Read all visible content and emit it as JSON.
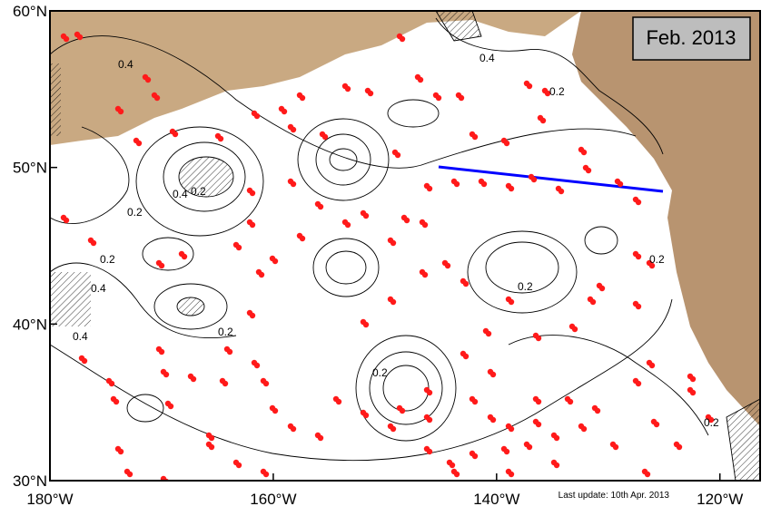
{
  "map": {
    "title": "Feb. 2013",
    "note": "Last update: 10th Apr. 2013",
    "xlim": [
      -180,
      -116.4
    ],
    "ylim": [
      30,
      60
    ],
    "xticks": [
      {
        "value": -180,
        "label": "180°W"
      },
      {
        "value": -160,
        "label": "160°W"
      },
      {
        "value": -140,
        "label": "140°W"
      },
      {
        "value": -120,
        "label": "120°W"
      }
    ],
    "yticks": [
      {
        "value": 30,
        "label": "30°N"
      },
      {
        "value": 40,
        "label": "40°N"
      },
      {
        "value": 50,
        "label": "50°N"
      },
      {
        "value": 60,
        "label": "60°N"
      }
    ],
    "contour_labels": [
      "0.4",
      "0.2",
      "0.2",
      "0.4",
      "0.2",
      "0.4",
      "0.4",
      "0.2",
      "0.2",
      "0.2",
      "0.4",
      "0.2",
      "0.2",
      "0.2"
    ]
  }
}
